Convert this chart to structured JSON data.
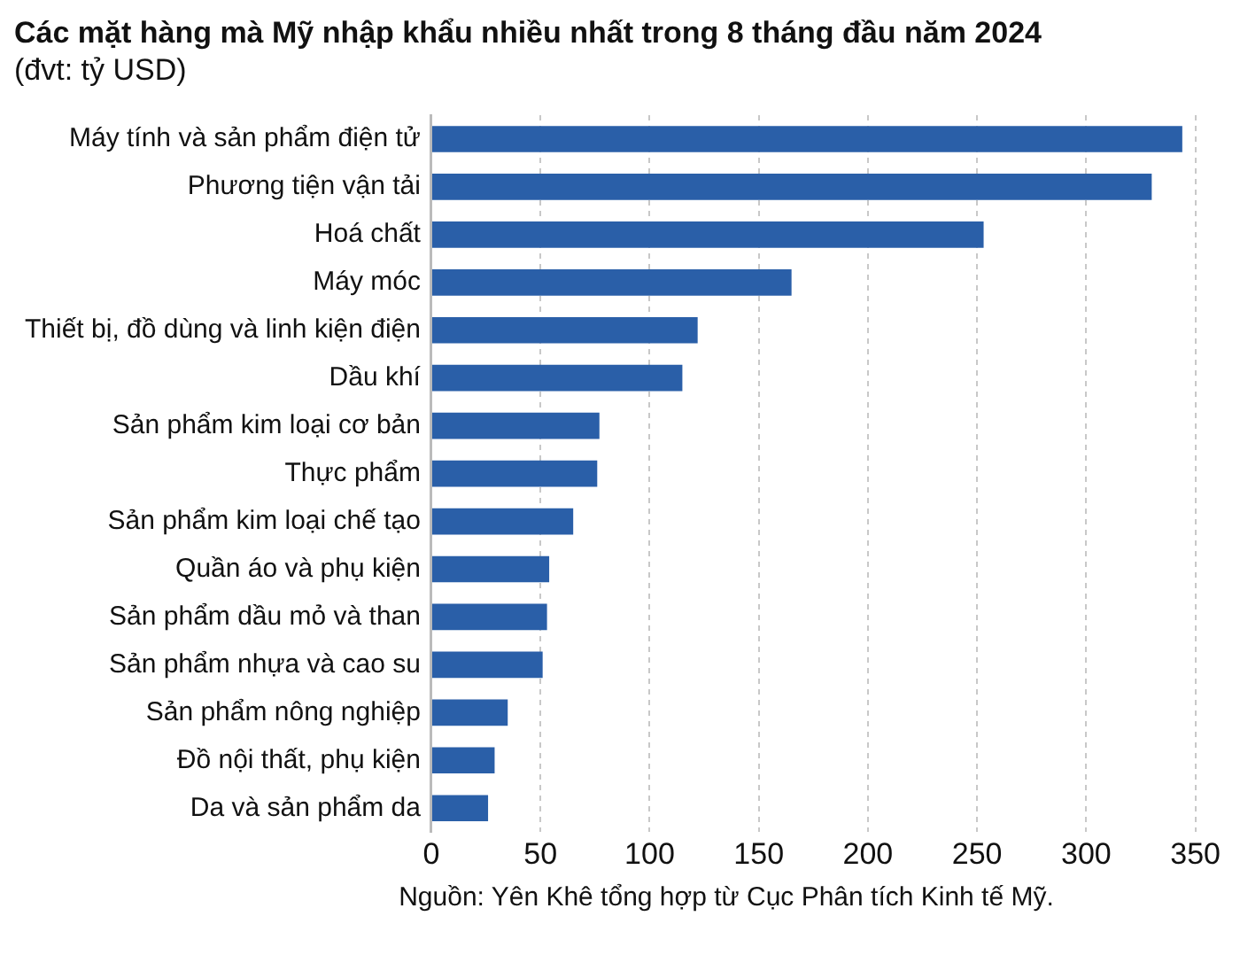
{
  "chart_data": {
    "type": "bar",
    "orientation": "horizontal",
    "title": "Các mặt hàng mà Mỹ nhập khẩu nhiều nhất trong 8 tháng đầu năm 2024",
    "subtitle": "(đvt: tỷ USD)",
    "categories": [
      "Máy tính và sản phẩm điện tử",
      "Phương tiện vận tải",
      "Hoá chất",
      "Máy móc",
      "Thiết bị, đồ dùng và linh kiện điện",
      "Dầu khí",
      "Sản phẩm kim loại cơ bản",
      "Thực phẩm",
      "Sản phẩm kim loại chế tạo",
      "Quần áo và phụ kiện",
      "Sản phẩm dầu mỏ và than",
      "Sản phẩm nhựa và cao su",
      "Sản phẩm nông nghiệp",
      "Đồ nội thất, phụ kiện",
      "Da và sản phẩm da"
    ],
    "values": [
      344,
      330,
      253,
      165,
      122,
      115,
      77,
      76,
      65,
      54,
      53,
      51,
      35,
      29,
      26
    ],
    "color": "#2a5fa8",
    "xlim": [
      0,
      350
    ],
    "xticks": [
      0,
      50,
      100,
      150,
      200,
      250,
      300,
      350
    ],
    "grid": "x",
    "annotations": [
      "Nguồn: Yên Khê tổng hợp từ Cục Phân tích Kinh tế Mỹ."
    ]
  }
}
